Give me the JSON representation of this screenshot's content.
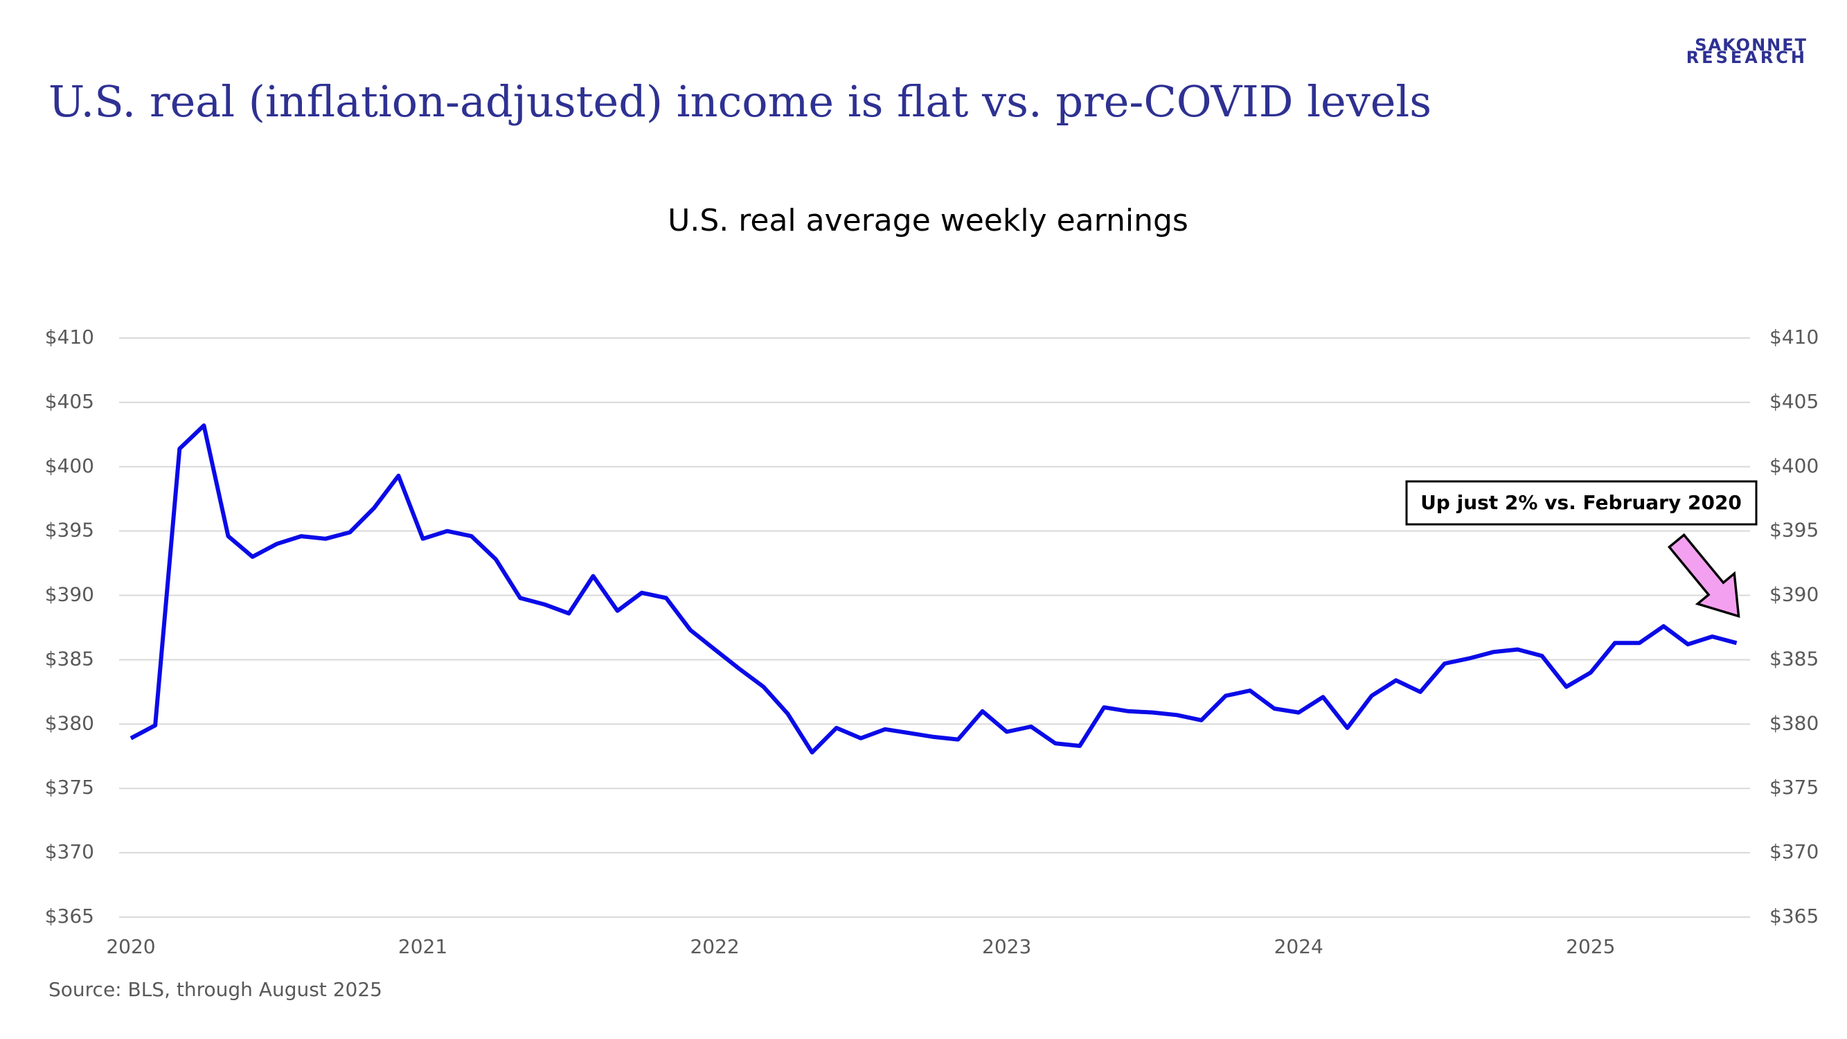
{
  "logo": [
    "SAKONNET",
    "RESEARCH"
  ],
  "chart_data": {
    "type": "line",
    "title": "U.S. real (inflation-adjusted) income is flat vs. pre-COVID levels",
    "subtitle": "U.S. real average weekly earnings",
    "source": "Source: BLS, through August 2025",
    "annotation": "Up just 2% vs. February 2020",
    "categories": [
      "2020",
      null,
      null,
      null,
      null,
      null,
      null,
      null,
      null,
      null,
      null,
      null,
      "2021",
      null,
      null,
      null,
      null,
      null,
      null,
      null,
      null,
      null,
      null,
      null,
      "2022",
      null,
      null,
      null,
      null,
      null,
      null,
      null,
      null,
      null,
      null,
      null,
      "2023",
      null,
      null,
      null,
      null,
      null,
      null,
      null,
      null,
      null,
      null,
      null,
      "2024",
      null,
      null,
      null,
      null,
      null,
      null,
      null,
      null,
      null,
      null,
      null,
      "2025",
      null,
      null,
      null,
      null,
      null,
      null
    ],
    "series": [
      {
        "name": "U.S. real average weekly earnings",
        "color": "#0a0ae8",
        "values": [
          378.9,
          379.9,
          401.4,
          403.2,
          394.6,
          393.0,
          394.0,
          394.6,
          394.4,
          394.9,
          396.8,
          399.3,
          394.4,
          395.0,
          394.6,
          392.8,
          389.8,
          389.3,
          388.6,
          391.5,
          388.8,
          390.2,
          389.8,
          387.3,
          385.8,
          384.3,
          382.9,
          380.8,
          377.8,
          379.7,
          378.9,
          379.6,
          379.3,
          379.0,
          378.8,
          381.0,
          379.4,
          379.8,
          378.5,
          378.3,
          381.3,
          381.0,
          380.9,
          380.7,
          380.3,
          382.2,
          382.6,
          381.2,
          380.9,
          382.1,
          379.7,
          382.2,
          383.4,
          382.5,
          384.7,
          385.1,
          385.6,
          385.8,
          385.3,
          382.9,
          384.0,
          386.3,
          386.3,
          387.6,
          386.2,
          386.8,
          386.3
        ]
      }
    ],
    "ylim": [
      365,
      410
    ],
    "yticks": [
      {
        "value": 365,
        "label": "$365"
      },
      {
        "value": 370,
        "label": "$370"
      },
      {
        "value": 375,
        "label": "$375"
      },
      {
        "value": 380,
        "label": "$380"
      },
      {
        "value": 385,
        "label": "$385"
      },
      {
        "value": 390,
        "label": "$390"
      },
      {
        "value": 395,
        "label": "$395"
      },
      {
        "value": 400,
        "label": "$400"
      },
      {
        "value": 405,
        "label": "$405"
      },
      {
        "value": 410,
        "label": "$410"
      }
    ],
    "grid": true
  }
}
